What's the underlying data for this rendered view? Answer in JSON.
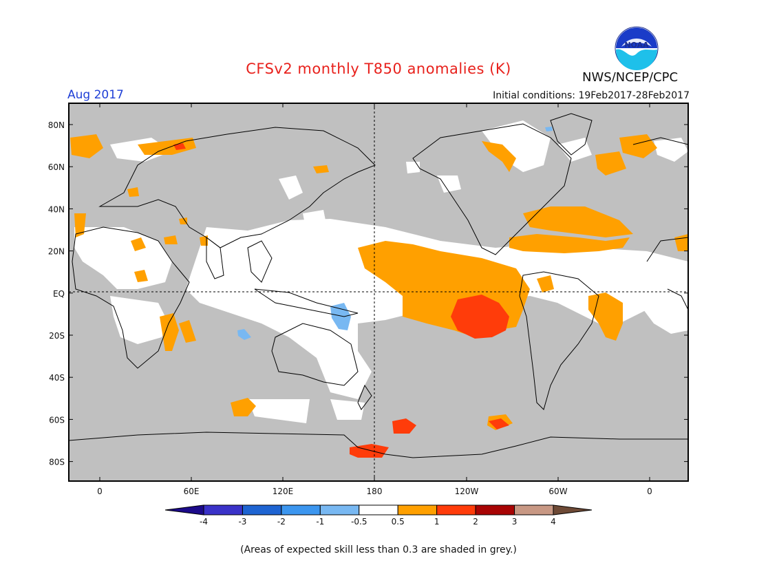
{
  "title": "CFSv2 monthly T850 anomalies (K)",
  "agency": "NWS/NCEP/CPC",
  "logo_text": "NOAA",
  "month": "Aug 2017",
  "initial_conditions": "Initial conditions: 19Feb2017-28Feb2017",
  "footnote": "(Areas of expected skill less than 0.3 are shaded in grey.)",
  "map": {
    "lat_labels": [
      "80N",
      "60N",
      "40N",
      "20N",
      "EQ",
      "20S",
      "40S",
      "60S",
      "80S"
    ],
    "lon_labels": [
      "0",
      "60E",
      "120E",
      "180",
      "120W",
      "60W",
      "0"
    ],
    "grey_color": "#c0c0c0"
  },
  "legend": {
    "bins": [
      {
        "color": "#1c0a8a"
      },
      {
        "color": "#3a32c8"
      },
      {
        "color": "#1e64d2"
      },
      {
        "color": "#3c96ef"
      },
      {
        "color": "#78b8f2"
      },
      {
        "color": "#ffffff"
      },
      {
        "color": "#ffa000"
      },
      {
        "color": "#ff3c0a"
      },
      {
        "color": "#a80404"
      },
      {
        "color": "#c89884"
      },
      {
        "color": "#6e4a36"
      }
    ],
    "tick_labels": [
      "-4",
      "-3",
      "-2",
      "-1",
      "-0.5",
      "0.5",
      "1",
      "2",
      "3",
      "4"
    ]
  }
}
